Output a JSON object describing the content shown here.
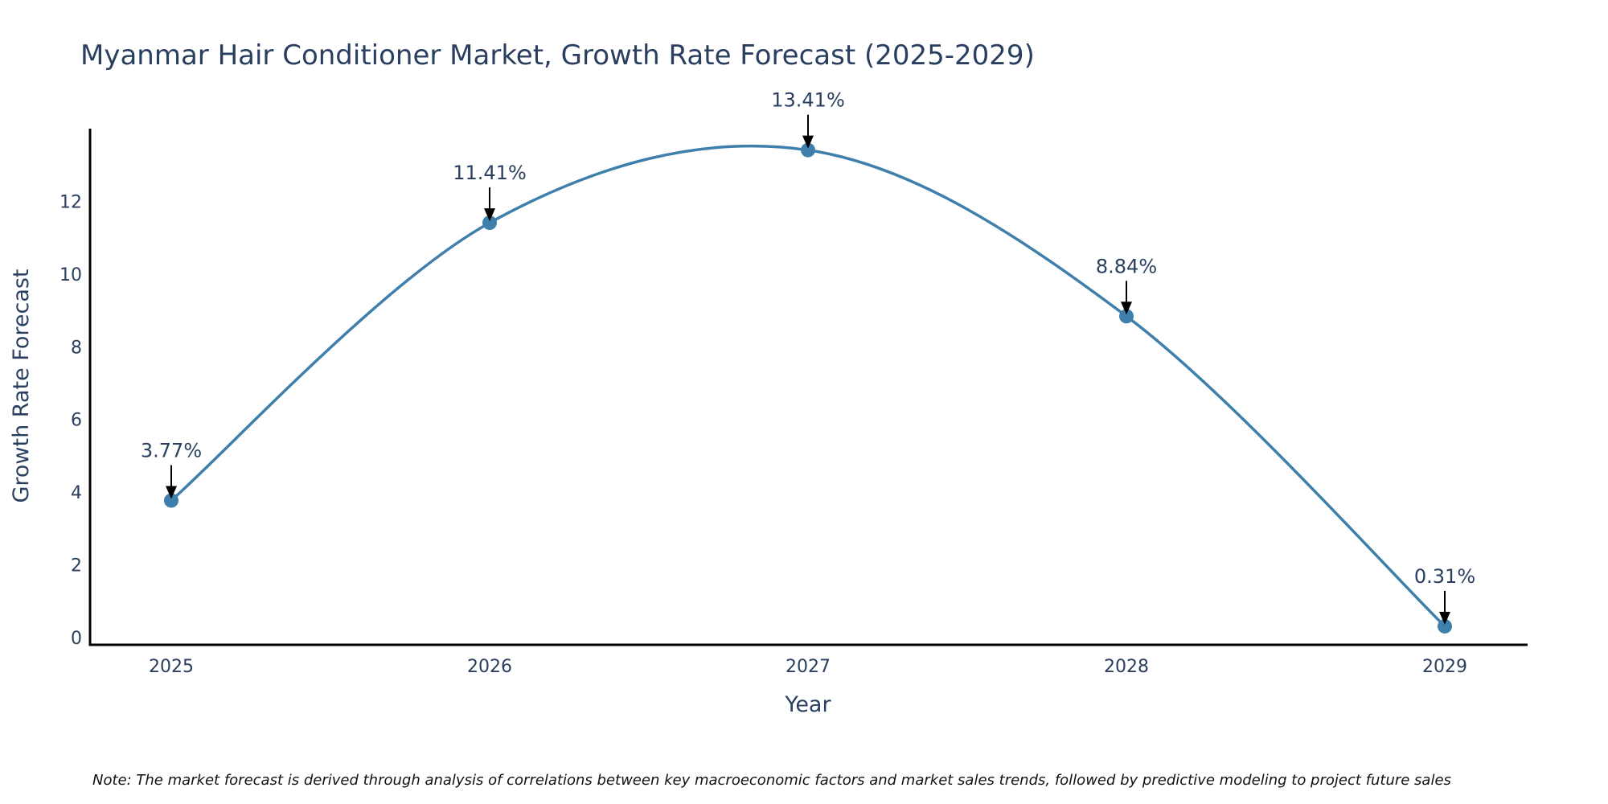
{
  "chart_data": {
    "type": "line",
    "title": "Myanmar Hair Conditioner Market, Growth Rate Forecast (2025-2029)",
    "xlabel": "Year",
    "ylabel": "Growth Rate Forecast",
    "categories": [
      "2025",
      "2026",
      "2027",
      "2028",
      "2029"
    ],
    "series": [
      {
        "name": "Growth Rate Forecast",
        "values": [
          3.77,
          11.41,
          13.41,
          8.84,
          0.31
        ],
        "labels": [
          "3.77%",
          "11.41%",
          "13.41%",
          "8.84%",
          "0.31%"
        ]
      }
    ],
    "yticks": [
      0,
      2,
      4,
      6,
      8,
      10,
      12
    ],
    "ylim": [
      -0.2,
      14
    ],
    "grid": false,
    "line_color": "#3f7fab",
    "marker_color": "#3f7fab",
    "note": "Note: The market forecast is derived through analysis of correlations between key macroeconomic factors and market sales trends, followed by predictive modeling to project future sales"
  }
}
